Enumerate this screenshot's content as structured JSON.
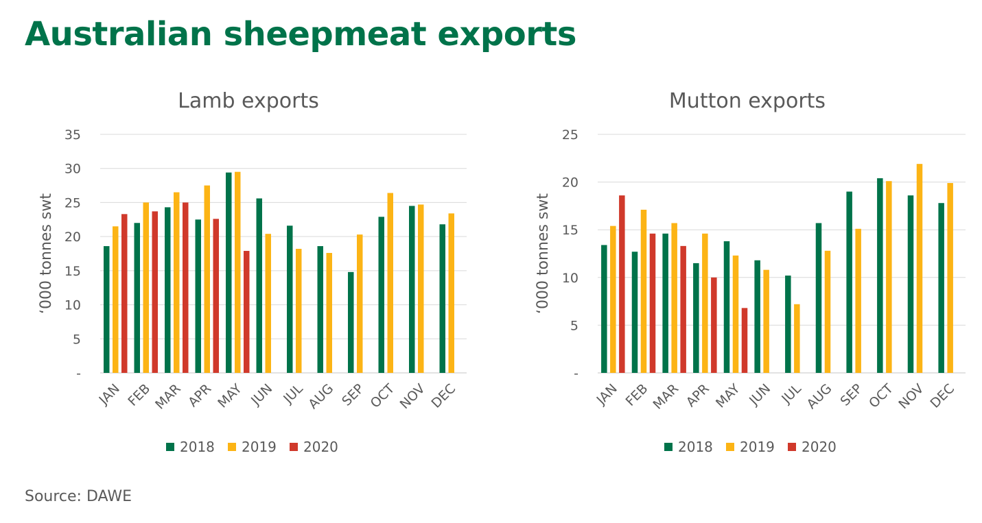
{
  "title": "Australian sheepmeat exports",
  "source": "Source:  DAWE",
  "colors": {
    "2018": "#00734a",
    "2019": "#fcb415",
    "2020": "#d0392b",
    "title": "#00734a"
  },
  "chart_data": [
    {
      "type": "bar",
      "title": "Lamb exports",
      "xlabel": "",
      "ylabel": "‘000 tonnes swt",
      "ylim": [
        0,
        35
      ],
      "yticks": [
        0,
        5,
        10,
        15,
        20,
        25,
        30,
        35
      ],
      "ytick_labels": [
        "-",
        "5",
        "10",
        "15",
        "20",
        "25",
        "30",
        "35"
      ],
      "grid": true,
      "legend": "bottom",
      "categories": [
        "JAN",
        "FEB",
        "MAR",
        "APR",
        "MAY",
        "JUN",
        "JUL",
        "AUG",
        "SEP",
        "OCT",
        "NOV",
        "DEC"
      ],
      "series": [
        {
          "name": "2018",
          "values": [
            18.6,
            22.0,
            24.3,
            22.5,
            29.4,
            25.6,
            21.6,
            18.6,
            14.8,
            22.9,
            24.5,
            21.8
          ]
        },
        {
          "name": "2019",
          "values": [
            21.5,
            25.0,
            26.5,
            27.5,
            29.5,
            20.4,
            18.2,
            17.6,
            20.3,
            26.4,
            24.7,
            23.4
          ]
        },
        {
          "name": "2020",
          "values": [
            23.3,
            23.7,
            25.0,
            22.6,
            17.9,
            null,
            null,
            null,
            null,
            null,
            null,
            null
          ]
        }
      ]
    },
    {
      "type": "bar",
      "title": "Mutton exports",
      "xlabel": "",
      "ylabel": "‘000 tonnes swt",
      "ylim": [
        0,
        25
      ],
      "yticks": [
        0,
        5,
        10,
        15,
        20,
        25
      ],
      "ytick_labels": [
        "-",
        "5",
        "10",
        "15",
        "20",
        "25"
      ],
      "grid": true,
      "legend": "bottom",
      "categories": [
        "JAN",
        "FEB",
        "MAR",
        "APR",
        "MAY",
        "JUN",
        "JUL",
        "AUG",
        "SEP",
        "OCT",
        "NOV",
        "DEC"
      ],
      "series": [
        {
          "name": "2018",
          "values": [
            13.4,
            12.7,
            14.6,
            11.5,
            13.8,
            11.8,
            10.2,
            15.7,
            19.0,
            20.4,
            18.6,
            17.8
          ]
        },
        {
          "name": "2019",
          "values": [
            15.4,
            17.1,
            15.7,
            14.6,
            12.3,
            10.8,
            7.2,
            12.8,
            15.1,
            20.1,
            21.9,
            19.9
          ]
        },
        {
          "name": "2020",
          "values": [
            18.6,
            14.6,
            13.3,
            10.0,
            6.8,
            null,
            null,
            null,
            null,
            null,
            null,
            null
          ]
        }
      ]
    }
  ]
}
